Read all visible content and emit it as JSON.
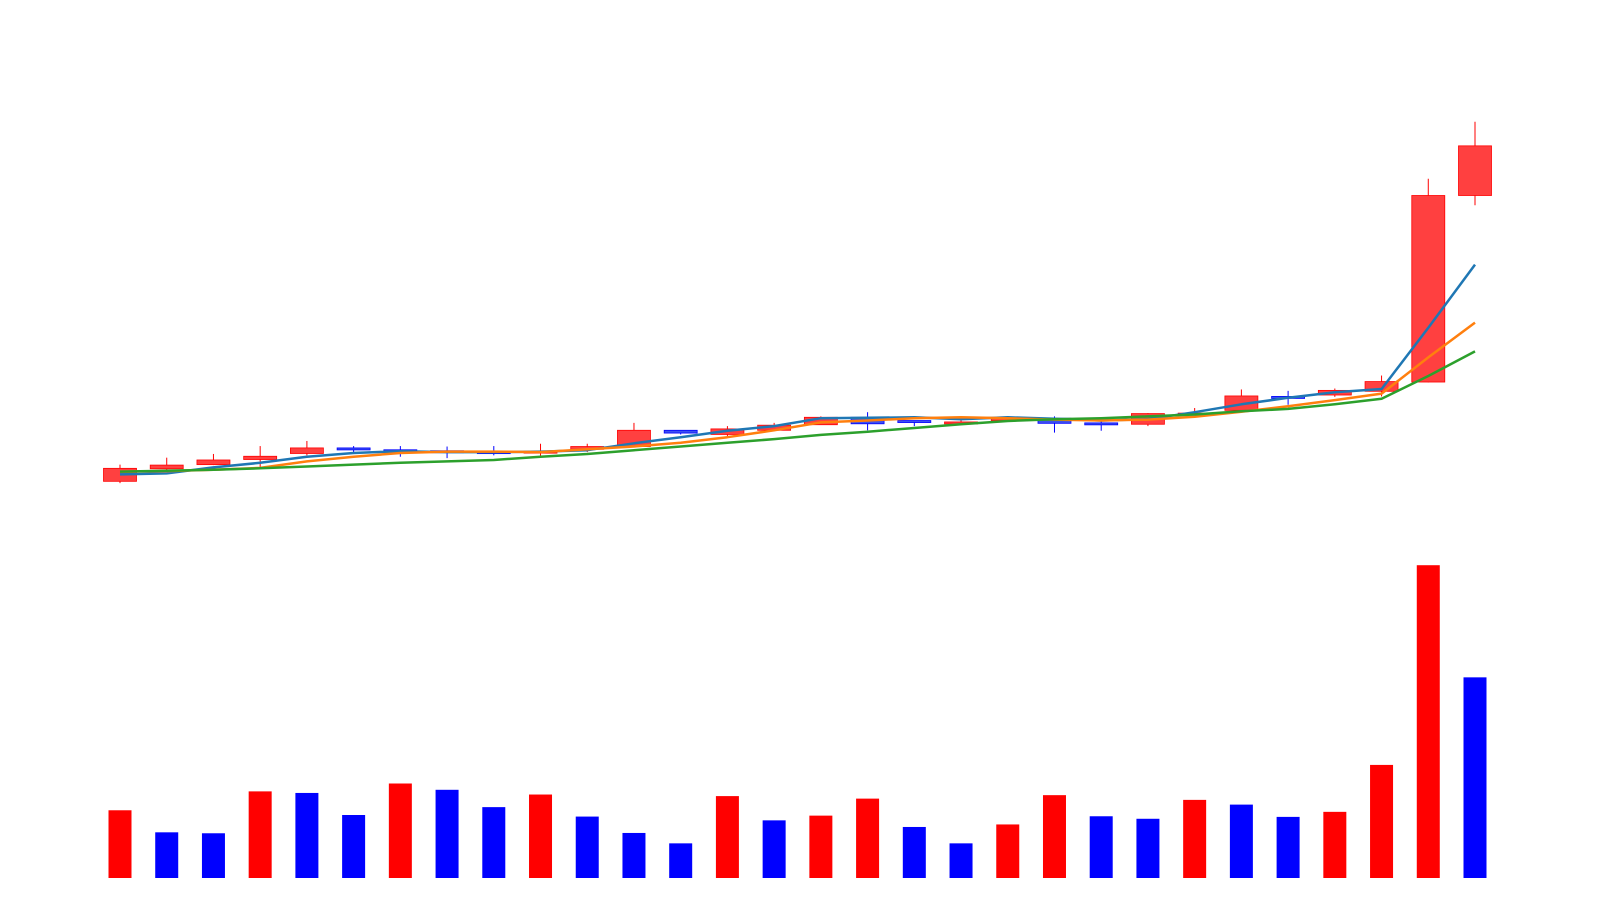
{
  "chart_data": {
    "type": "candlestick",
    "title": "",
    "xlabel": "",
    "ylabel": "",
    "grid": false,
    "legend": "none",
    "colors": {
      "up": "#ff0000",
      "down": "#0000ff",
      "candle_up_fill": "#ff4040",
      "candle_down_fill": "#3c50f0",
      "ma_short": "#1f77b4",
      "ma_mid": "#ff7f0e",
      "ma_long": "#2ca02c"
    },
    "price_ylim": [
      0,
      100
    ],
    "volume_ylim": [
      0,
      100
    ],
    "candles": [
      {
        "open": 5.1,
        "high": 5.9,
        "low": 1.9,
        "close": 2.3,
        "dir": "up"
      },
      {
        "open": 5.8,
        "high": 7.4,
        "low": 4.4,
        "close": 5.0,
        "dir": "up"
      },
      {
        "open": 6.9,
        "high": 8.2,
        "low": 5.8,
        "close": 5.9,
        "dir": "up"
      },
      {
        "open": 7.7,
        "high": 9.9,
        "low": 5.3,
        "close": 7.0,
        "dir": "up"
      },
      {
        "open": 9.5,
        "high": 11.0,
        "low": 7.9,
        "close": 8.3,
        "dir": "up"
      },
      {
        "open": 9.5,
        "high": 9.9,
        "low": 8.5,
        "close": 9.1,
        "dir": "down"
      },
      {
        "open": 9.1,
        "high": 9.9,
        "low": 7.6,
        "close": 9.1,
        "dir": "down"
      },
      {
        "open": 8.9,
        "high": 9.8,
        "low": 7.3,
        "close": 8.7,
        "dir": "down"
      },
      {
        "open": 8.7,
        "high": 9.9,
        "low": 7.9,
        "close": 8.7,
        "dir": "down"
      },
      {
        "open": 8.8,
        "high": 10.4,
        "low": 7.6,
        "close": 8.6,
        "dir": "up"
      },
      {
        "open": 9.8,
        "high": 10.4,
        "low": 8.6,
        "close": 9.2,
        "dir": "up"
      },
      {
        "open": 13.3,
        "high": 14.9,
        "low": 9.6,
        "close": 9.8,
        "dir": "up"
      },
      {
        "open": 13.3,
        "high": 13.3,
        "low": 12.4,
        "close": 12.7,
        "dir": "down"
      },
      {
        "open": 13.6,
        "high": 14.2,
        "low": 12.0,
        "close": 12.4,
        "dir": "up"
      },
      {
        "open": 14.4,
        "high": 14.9,
        "low": 13.1,
        "close": 13.3,
        "dir": "up"
      },
      {
        "open": 16.1,
        "high": 16.3,
        "low": 14.5,
        "close": 14.5,
        "dir": "up"
      },
      {
        "open": 16.1,
        "high": 17.2,
        "low": 13.3,
        "close": 14.7,
        "dir": "down"
      },
      {
        "open": 15.4,
        "high": 15.4,
        "low": 14.2,
        "close": 15.3,
        "dir": "down"
      },
      {
        "open": 15.1,
        "high": 16.3,
        "low": 14.7,
        "close": 14.8,
        "dir": "up"
      },
      {
        "open": 15.9,
        "high": 16.3,
        "low": 15.1,
        "close": 15.4,
        "dir": "up"
      },
      {
        "open": 15.9,
        "high": 16.3,
        "low": 12.8,
        "close": 14.8,
        "dir": "down"
      },
      {
        "open": 14.9,
        "high": 15.3,
        "low": 13.2,
        "close": 14.5,
        "dir": "down"
      },
      {
        "open": 16.9,
        "high": 17.0,
        "low": 14.2,
        "close": 14.6,
        "dir": "up"
      },
      {
        "open": 17.0,
        "high": 18.1,
        "low": 16.5,
        "close": 16.7,
        "dir": "up"
      },
      {
        "open": 20.7,
        "high": 22.1,
        "low": 17.3,
        "close": 17.6,
        "dir": "up"
      },
      {
        "open": 20.6,
        "high": 21.8,
        "low": 18.8,
        "close": 20.4,
        "dir": "down"
      },
      {
        "open": 21.9,
        "high": 22.3,
        "low": 20.5,
        "close": 20.9,
        "dir": "up"
      },
      {
        "open": 23.8,
        "high": 25.1,
        "low": 20.6,
        "close": 21.7,
        "dir": "up"
      },
      {
        "open": 63.9,
        "high": 67.5,
        "low": 23.6,
        "close": 23.7,
        "dir": "up"
      },
      {
        "open": 74.6,
        "high": 79.8,
        "low": 61.8,
        "close": 63.9,
        "dir": "up"
      }
    ],
    "moving_averages": [
      {
        "name": "",
        "color": "#1f77b4",
        "values": [
          3.8,
          4.0,
          5.3,
          6.3,
          7.6,
          8.4,
          8.8,
          8.6,
          8.6,
          8.7,
          9.0,
          10.5,
          11.8,
          13.2,
          14.2,
          15.9,
          16.0,
          16.1,
          15.7,
          16.1,
          15.8,
          15.4,
          15.7,
          17.2,
          18.9,
          20.3,
          21.5,
          22.2,
          35.4,
          49.0
        ]
      },
      {
        "name": "",
        "color": "#ff7f0e",
        "values": [
          4.4,
          4.5,
          4.8,
          5.2,
          6.6,
          7.6,
          8.4,
          8.7,
          8.7,
          8.6,
          9.2,
          9.8,
          10.6,
          11.8,
          13.3,
          15.0,
          15.4,
          15.9,
          16.1,
          15.9,
          15.6,
          15.4,
          15.6,
          16.2,
          17.3,
          18.5,
          19.8,
          21.2,
          29.0,
          36.5
        ]
      },
      {
        "name": "",
        "color": "#2ca02c",
        "values": [
          4.4,
          4.6,
          4.8,
          5.1,
          5.5,
          5.9,
          6.3,
          6.6,
          6.9,
          7.6,
          8.2,
          9.0,
          9.8,
          10.6,
          11.4,
          12.3,
          13.0,
          13.8,
          14.6,
          15.3,
          15.7,
          15.9,
          16.3,
          16.7,
          17.4,
          17.9,
          18.9,
          20.1,
          25.0,
          30.3
        ]
      }
    ],
    "volume": {
      "values": [
        21.5,
        14.5,
        14.2,
        27.5,
        27.0,
        20.0,
        30.0,
        28.0,
        22.5,
        26.5,
        19.5,
        14.3,
        11.0,
        26.0,
        18.3,
        19.8,
        25.2,
        16.2,
        11.0,
        17.0,
        26.3,
        19.6,
        18.8,
        24.8,
        23.3,
        19.4,
        21.0,
        35.9,
        99.3,
        63.7
      ],
      "dir": [
        "up",
        "down",
        "down",
        "up",
        "down",
        "down",
        "up",
        "down",
        "down",
        "up",
        "down",
        "down",
        "down",
        "up",
        "down",
        "up",
        "up",
        "down",
        "down",
        "up",
        "up",
        "down",
        "down",
        "up",
        "down",
        "down",
        "up",
        "up",
        "up",
        "down"
      ]
    }
  }
}
